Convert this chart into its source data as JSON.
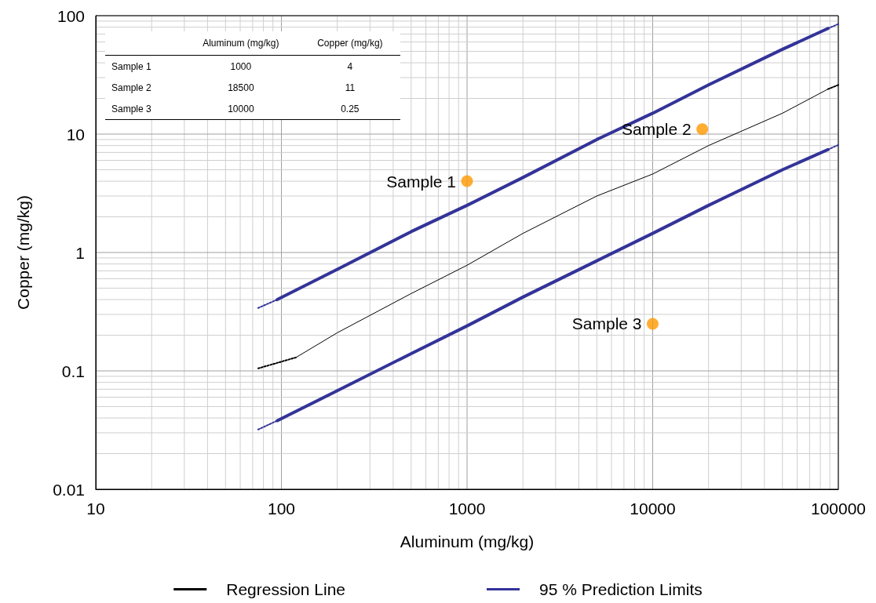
{
  "chart_data": {
    "type": "line",
    "xlabel": "Aluminum (mg/kg)",
    "ylabel": "Copper (mg/kg)",
    "log": "xy",
    "xlim": [
      10,
      100000
    ],
    "xticks": [
      10,
      100,
      1000,
      10000,
      100000
    ],
    "ylim": [
      0.01,
      100
    ],
    "yticks": [
      0.01,
      0.1,
      1,
      10,
      100
    ],
    "grid": true,
    "legend": "bottom",
    "marker": "none",
    "line_style": "solid",
    "annotations": [
      "Aluminum (mg/kg)",
      "Copper (mg/kg)",
      "Sample 1",
      "1000",
      "4",
      "Sample 2",
      "18500",
      "11",
      "Sample 3",
      "10000",
      "0.25",
      {
        "text": "Sample 1",
        "x": 1000,
        "y": 4
      },
      {
        "text": "Sample 2",
        "x": 18500,
        "y": 11
      },
      {
        "text": "Sample 3",
        "x": 10000,
        "y": 0.25
      }
    ],
    "series": [
      {
        "name": "Regression Line",
        "color": "#000000",
        "x": [
          120,
          200,
          500,
          1000,
          2000,
          5000,
          10000,
          20000,
          50000,
          88000
        ],
        "values": [
          0.13,
          0.21,
          0.45,
          0.78,
          1.45,
          3.0,
          4.6,
          8,
          15,
          24
        ]
      },
      {
        "name": "95 % Prediction Limits",
        "color": "#333399",
        "x": [
          95,
          200,
          500,
          1000,
          2000,
          5000,
          10000,
          20000,
          50000,
          88000
        ],
        "values": [
          0.4,
          0.72,
          1.5,
          2.5,
          4.3,
          9,
          15,
          26,
          52,
          78
        ]
      },
      {
        "color": "#333399",
        "x": [
          95,
          200,
          500,
          1000,
          2000,
          5000,
          10000,
          20000,
          50000,
          88000
        ],
        "values": [
          0.038,
          0.068,
          0.14,
          0.24,
          0.42,
          0.85,
          1.45,
          2.5,
          5,
          7.4
        ]
      },
      {
        "color": "#000000",
        "line_style": "dotted",
        "x": [
          75,
          120
        ],
        "values": [
          0.105,
          0.13
        ]
      },
      {
        "color": "#333399",
        "line_style": "dotted",
        "x": [
          75,
          95
        ],
        "values": [
          0.34,
          0.4
        ]
      },
      {
        "color": "#333399",
        "line_style": "dotted",
        "x": [
          75,
          95
        ],
        "values": [
          0.032,
          0.038
        ]
      },
      {
        "color": "#000000",
        "line_style": "dotted",
        "x": [
          88000,
          100000
        ],
        "values": [
          24,
          26
        ]
      },
      {
        "color": "#333399",
        "line_style": "dotted",
        "x": [
          88000,
          100000
        ],
        "values": [
          78,
          85
        ]
      },
      {
        "color": "#333399",
        "line_style": "dotted",
        "x": [
          88000,
          100000
        ],
        "values": [
          7.4,
          8.1
        ]
      },
      {
        "type": "scatter",
        "color": "#ff9900",
        "marker": "circle",
        "x": [
          1000,
          18500,
          10000
        ],
        "values": [
          4,
          11,
          0.25
        ]
      }
    ]
  }
}
